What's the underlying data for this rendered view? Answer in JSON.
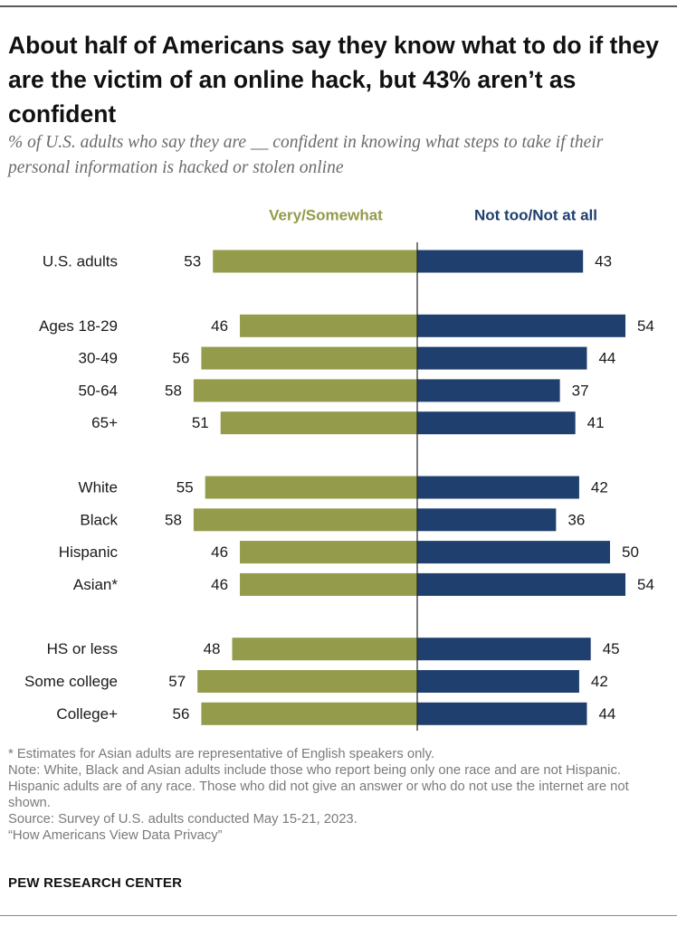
{
  "title": "About half of Americans say they know what to do if they are the victim of an online hack, but 43% aren’t as confident",
  "subtitle": "% of U.S. adults who say they are __ confident in knowing what steps to take if their personal information is hacked or stolen online",
  "colors": {
    "positive": "#949b4a",
    "negative": "#1f3f6e",
    "text": "#1a1a1a"
  },
  "chart_data": {
    "type": "bar",
    "orientation": "diverging-horizontal",
    "title": "About half of Americans say they know what to do if they are the victim of an online hack, but 43% aren’t as confident",
    "series": [
      {
        "name": "Very/Somewhat",
        "values": [
          53,
          46,
          56,
          58,
          51,
          55,
          58,
          46,
          46,
          48,
          57,
          56
        ]
      },
      {
        "name": "Not too/Not at all",
        "values": [
          43,
          54,
          44,
          37,
          41,
          42,
          36,
          50,
          54,
          45,
          42,
          44
        ]
      }
    ],
    "categories": [
      "U.S. adults",
      "Ages 18-29",
      "30-49",
      "50-64",
      "65+",
      "White",
      "Black",
      "Hispanic",
      "Asian*",
      "HS or less",
      "Some college",
      "College+"
    ],
    "groups": [
      1,
      2,
      2,
      2,
      2,
      3,
      3,
      3,
      3,
      4,
      4,
      4
    ],
    "xlim": [
      -60,
      60
    ],
    "legend_position": "top"
  },
  "footnotes": {
    "asterisk": "* Estimates for Asian adults are representative of English speakers only.",
    "note": "Note: White, Black and Asian adults include those who report being only one race and are not Hispanic. Hispanic adults are of any race. Those who did not give an answer or who do not use the internet are not shown.",
    "source": "Source: Survey of U.S. adults conducted May 15-21, 2023.",
    "report": "“How Americans View Data Privacy”"
  },
  "brand": "PEW RESEARCH CENTER"
}
